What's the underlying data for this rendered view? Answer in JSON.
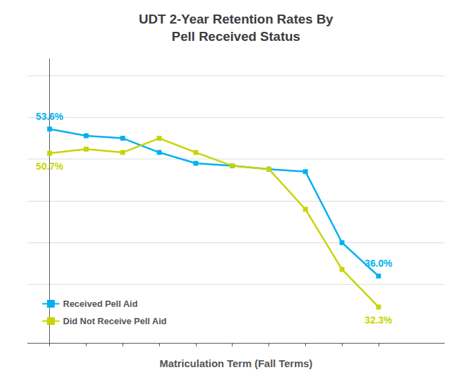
{
  "chart_data": {
    "type": "line",
    "title": "UDT 2-Year Retention Rates By\nPell Received Status",
    "xlabel": "Matriculation Term (Fall Terms)",
    "x": [
      0,
      1,
      2,
      3,
      4,
      5,
      6,
      7,
      8,
      9
    ],
    "series": [
      {
        "name": "Received Pell Aid",
        "color": "#00b0f0",
        "marker": "square",
        "values": [
          53.6,
          52.8,
          52.5,
          50.8,
          49.5,
          49.2,
          48.8,
          48.5,
          40.0,
          36.0
        ],
        "value_labels": [
          "53.6%",
          null,
          null,
          null,
          null,
          null,
          null,
          null,
          null,
          "36.0%"
        ]
      },
      {
        "name": "Did Not Receive Pell Aid",
        "color": "#c8d400",
        "marker": "square",
        "values": [
          50.7,
          51.2,
          50.8,
          52.5,
          50.8,
          49.2,
          48.8,
          44.0,
          36.8,
          32.3
        ],
        "value_labels": [
          "50.7%",
          null,
          null,
          null,
          null,
          null,
          null,
          null,
          null,
          "32.3%"
        ]
      }
    ],
    "xlim": [
      -0.6,
      10.8
    ],
    "xticks": [
      0,
      1,
      2,
      3,
      4,
      5,
      6,
      7,
      8,
      9
    ],
    "ylim": [
      28,
      62
    ],
    "yticks": [
      35,
      40,
      45,
      50,
      55,
      60
    ],
    "grid": true,
    "tick_labels": false,
    "legend": "lower left"
  }
}
